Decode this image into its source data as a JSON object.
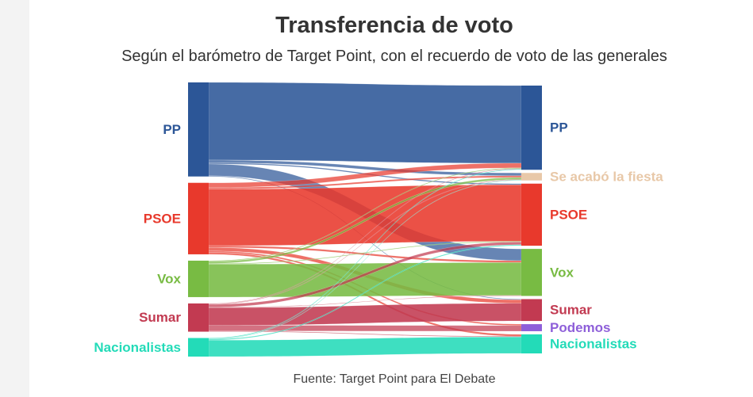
{
  "title": "Transferencia de voto",
  "subtitle": "Según el barómetro de Target Point, con el recuerdo de voto de las generales",
  "source": "Fuente: Target Point para El Debate",
  "chart_data": {
    "type": "sankey",
    "title": "Transferencia de voto",
    "subtitle": "Según el barómetro de Target Point, con el recuerdo de voto de las generales",
    "source_nodes": [
      {
        "id": "PP",
        "label": "PP",
        "color": "#2c5697"
      },
      {
        "id": "PSOE",
        "label": "PSOE",
        "color": "#e8392c"
      },
      {
        "id": "Vox",
        "label": "Vox",
        "color": "#78bb43"
      },
      {
        "id": "Sumar",
        "label": "Sumar",
        "color": "#c23a51"
      },
      {
        "id": "Nacionalistas",
        "label": "Nacionalistas",
        "color": "#23dbb8"
      }
    ],
    "target_nodes": [
      {
        "id": "PP",
        "label": "PP",
        "color": "#2c5697"
      },
      {
        "id": "SALF",
        "label": "Se acabó la fiesta",
        "color": "#e8c8a8"
      },
      {
        "id": "PSOE",
        "label": "PSOE",
        "color": "#e8392c"
      },
      {
        "id": "Vox",
        "label": "Vox",
        "color": "#78bb43"
      },
      {
        "id": "Sumar",
        "label": "Sumar",
        "color": "#c23a51"
      },
      {
        "id": "Podemos",
        "label": "Podemos",
        "color": "#8e5fd9"
      },
      {
        "id": "Nacionalistas",
        "label": "Nacionalistas",
        "color": "#23dbb8"
      }
    ],
    "links": [
      {
        "from": "PP",
        "to": "PP",
        "value": 33
      },
      {
        "from": "PP",
        "to": "SALF",
        "value": 1.2
      },
      {
        "from": "PP",
        "to": "PSOE",
        "value": 0.5
      },
      {
        "from": "PP",
        "to": "Vox",
        "value": 5
      },
      {
        "from": "PP",
        "to": "Sumar",
        "value": 0.3
      },
      {
        "from": "PSOE",
        "to": "PP",
        "value": 2
      },
      {
        "from": "PSOE",
        "to": "SALF",
        "value": 0.7
      },
      {
        "from": "PSOE",
        "to": "PSOE",
        "value": 24
      },
      {
        "from": "PSOE",
        "to": "Vox",
        "value": 0.8
      },
      {
        "from": "PSOE",
        "to": "Sumar",
        "value": 1.5
      },
      {
        "from": "PSOE",
        "to": "Podemos",
        "value": 0.6
      },
      {
        "from": "PSOE",
        "to": "Nacionalistas",
        "value": 0.8
      },
      {
        "from": "Vox",
        "to": "PP",
        "value": 0.3
      },
      {
        "from": "Vox",
        "to": "SALF",
        "value": 0.9
      },
      {
        "from": "Vox",
        "to": "PSOE",
        "value": 0.3
      },
      {
        "from": "Vox",
        "to": "Vox",
        "value": 14
      },
      {
        "from": "Sumar",
        "to": "PP",
        "value": 0.2
      },
      {
        "from": "Sumar",
        "to": "SALF",
        "value": 0.2
      },
      {
        "from": "Sumar",
        "to": "PSOE",
        "value": 1.2
      },
      {
        "from": "Sumar",
        "to": "Vox",
        "value": 0.2
      },
      {
        "from": "Sumar",
        "to": "Sumar",
        "value": 7.5
      },
      {
        "from": "Sumar",
        "to": "Podemos",
        "value": 2.4
      },
      {
        "from": "Sumar",
        "to": "Nacionalistas",
        "value": 0.3
      },
      {
        "from": "Nacionalistas",
        "to": "PP",
        "value": 0.3
      },
      {
        "from": "Nacionalistas",
        "to": "SALF",
        "value": 0.2
      },
      {
        "from": "Nacionalistas",
        "to": "PSOE",
        "value": 0.4
      },
      {
        "from": "Nacionalistas",
        "to": "Nacionalistas",
        "value": 7
      }
    ]
  }
}
